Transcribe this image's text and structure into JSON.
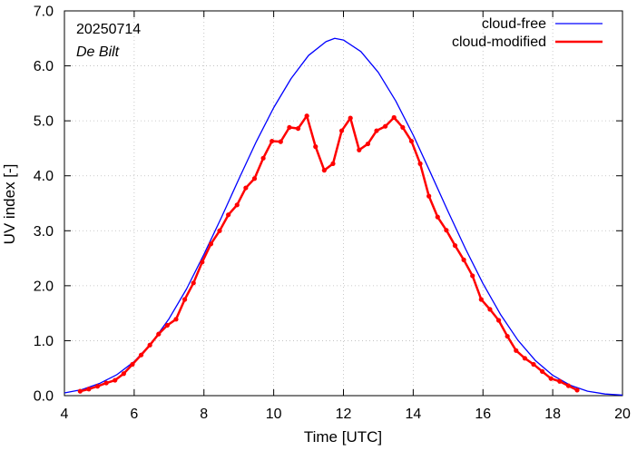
{
  "chart_data": {
    "type": "line",
    "xlabel": "Time  [UTC]",
    "ylabel": "UV index  [-]",
    "xlim": [
      4,
      20
    ],
    "ylim": [
      0,
      7
    ],
    "x_ticks": [
      "4",
      "6",
      "8",
      "10",
      "12",
      "14",
      "16",
      "18",
      "20"
    ],
    "y_ticks": [
      "0.0",
      "1.0",
      "2.0",
      "3.0",
      "4.0",
      "5.0",
      "6.0",
      "7.0"
    ],
    "grid": true,
    "legend_position": "top-right",
    "annotations": {
      "date": "20250714",
      "station": "De Bilt"
    },
    "colors": {
      "cloud_free": "#0000ff",
      "cloud_modified": "#ff0000",
      "grid": "#bbbbbb",
      "axes": "#000000"
    },
    "series": [
      {
        "name": "cloud-free",
        "style": "line",
        "x": [
          4.0,
          4.5,
          5.0,
          5.5,
          6.0,
          6.5,
          7.0,
          7.5,
          8.0,
          8.5,
          9.0,
          9.5,
          10.0,
          10.5,
          11.0,
          11.5,
          11.75,
          12.0,
          12.5,
          13.0,
          13.5,
          14.0,
          14.5,
          15.0,
          15.5,
          16.0,
          16.5,
          17.0,
          17.5,
          18.0,
          18.5,
          19.0,
          19.5,
          20.0
        ],
        "y": [
          0.05,
          0.11,
          0.22,
          0.38,
          0.62,
          0.96,
          1.4,
          1.94,
          2.57,
          3.24,
          3.94,
          4.62,
          5.24,
          5.77,
          6.19,
          6.44,
          6.5,
          6.47,
          6.26,
          5.88,
          5.36,
          4.74,
          4.05,
          3.35,
          2.67,
          2.04,
          1.48,
          1.01,
          0.64,
          0.37,
          0.19,
          0.08,
          0.03,
          0.01
        ]
      },
      {
        "name": "cloud-modified",
        "style": "line+points",
        "x": [
          4.45,
          4.7,
          4.95,
          5.2,
          5.45,
          5.7,
          5.95,
          6.2,
          6.45,
          6.7,
          6.95,
          7.2,
          7.45,
          7.7,
          7.95,
          8.2,
          8.45,
          8.7,
          8.95,
          9.2,
          9.45,
          9.7,
          9.95,
          10.2,
          10.45,
          10.7,
          10.95,
          11.2,
          11.45,
          11.7,
          11.95,
          12.2,
          12.45,
          12.7,
          12.95,
          13.2,
          13.45,
          13.7,
          13.95,
          14.2,
          14.45,
          14.7,
          14.95,
          15.2,
          15.45,
          15.7,
          15.95,
          16.2,
          16.45,
          16.7,
          16.95,
          17.2,
          17.45,
          17.7,
          17.95,
          18.2,
          18.45,
          18.7
        ],
        "y": [
          0.08,
          0.12,
          0.17,
          0.23,
          0.28,
          0.4,
          0.57,
          0.74,
          0.92,
          1.12,
          1.28,
          1.39,
          1.75,
          2.05,
          2.43,
          2.76,
          3.0,
          3.29,
          3.47,
          3.78,
          3.95,
          4.32,
          4.63,
          4.62,
          4.88,
          4.86,
          5.09,
          4.53,
          4.1,
          4.22,
          4.82,
          5.05,
          4.47,
          4.58,
          4.82,
          4.9,
          5.06,
          4.88,
          4.63,
          4.22,
          3.63,
          3.25,
          3.01,
          2.73,
          2.47,
          2.18,
          1.75,
          1.57,
          1.37,
          1.08,
          0.82,
          0.68,
          0.57,
          0.44,
          0.31,
          0.26,
          0.18,
          0.1
        ]
      }
    ]
  }
}
